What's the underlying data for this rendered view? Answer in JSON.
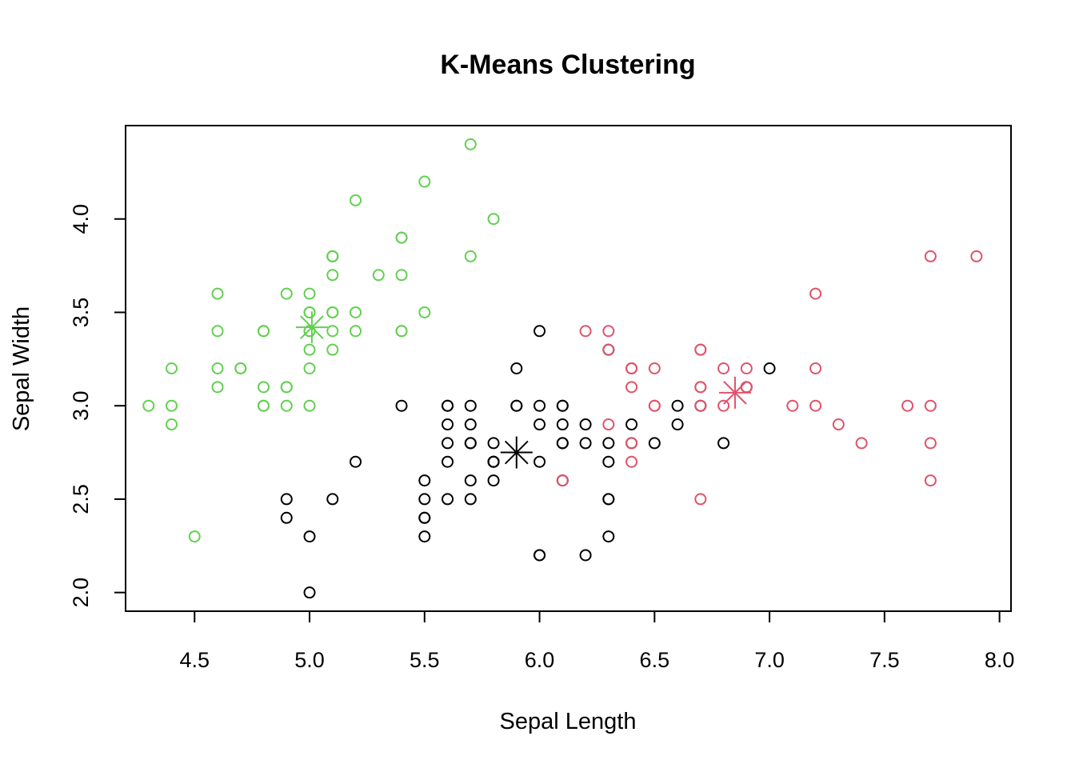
{
  "chart_data": {
    "type": "scatter",
    "title": "K-Means Clustering",
    "xlabel": "Sepal Length",
    "ylabel": "Sepal Width",
    "xlim": [
      4.2,
      8.05
    ],
    "ylim": [
      1.9,
      4.5
    ],
    "x_ticks": [
      "4.5",
      "5.0",
      "5.5",
      "6.0",
      "6.5",
      "7.0",
      "7.5",
      "8.0"
    ],
    "y_ticks": [
      "2.0",
      "2.5",
      "3.0",
      "3.5",
      "4.0"
    ],
    "grid": false,
    "legend": "none",
    "series": [
      {
        "color": "#61D04F",
        "marker": "open-circle",
        "points": [
          [
            5.1,
            3.5
          ],
          [
            4.9,
            3.0
          ],
          [
            4.7,
            3.2
          ],
          [
            4.6,
            3.1
          ],
          [
            5.0,
            3.6
          ],
          [
            5.4,
            3.9
          ],
          [
            4.6,
            3.4
          ],
          [
            5.0,
            3.4
          ],
          [
            4.4,
            2.9
          ],
          [
            4.9,
            3.1
          ],
          [
            5.4,
            3.7
          ],
          [
            4.8,
            3.4
          ],
          [
            4.8,
            3.0
          ],
          [
            4.3,
            3.0
          ],
          [
            5.8,
            4.0
          ],
          [
            5.7,
            4.4
          ],
          [
            5.4,
            3.9
          ],
          [
            5.1,
            3.5
          ],
          [
            5.7,
            3.8
          ],
          [
            5.1,
            3.8
          ],
          [
            5.4,
            3.4
          ],
          [
            5.1,
            3.7
          ],
          [
            4.6,
            3.6
          ],
          [
            5.1,
            3.3
          ],
          [
            4.8,
            3.4
          ],
          [
            5.0,
            3.0
          ],
          [
            5.0,
            3.4
          ],
          [
            5.2,
            3.5
          ],
          [
            5.2,
            3.4
          ],
          [
            4.7,
            3.2
          ],
          [
            4.8,
            3.1
          ],
          [
            5.4,
            3.4
          ],
          [
            5.2,
            4.1
          ],
          [
            5.5,
            4.2
          ],
          [
            4.9,
            3.1
          ],
          [
            5.0,
            3.2
          ],
          [
            5.5,
            3.5
          ],
          [
            4.9,
            3.6
          ],
          [
            4.4,
            3.0
          ],
          [
            5.1,
            3.4
          ],
          [
            5.0,
            3.5
          ],
          [
            4.5,
            2.3
          ],
          [
            4.4,
            3.2
          ],
          [
            5.0,
            3.5
          ],
          [
            5.1,
            3.8
          ],
          [
            4.8,
            3.0
          ],
          [
            5.1,
            3.8
          ],
          [
            4.6,
            3.2
          ],
          [
            5.3,
            3.7
          ],
          [
            5.0,
            3.3
          ]
        ]
      },
      {
        "color": "#000000",
        "marker": "open-circle",
        "points": [
          [
            7.0,
            3.2
          ],
          [
            5.5,
            2.3
          ],
          [
            6.5,
            2.8
          ],
          [
            5.7,
            2.8
          ],
          [
            6.3,
            3.3
          ],
          [
            4.9,
            2.4
          ],
          [
            6.6,
            2.9
          ],
          [
            5.2,
            2.7
          ],
          [
            5.0,
            2.0
          ],
          [
            5.9,
            3.0
          ],
          [
            6.0,
            2.2
          ],
          [
            6.1,
            2.9
          ],
          [
            5.6,
            2.9
          ],
          [
            5.6,
            3.0
          ],
          [
            5.8,
            2.7
          ],
          [
            6.2,
            2.2
          ],
          [
            5.6,
            2.5
          ],
          [
            5.9,
            3.2
          ],
          [
            6.1,
            2.8
          ],
          [
            6.3,
            2.5
          ],
          [
            6.1,
            2.8
          ],
          [
            6.4,
            2.9
          ],
          [
            6.6,
            3.0
          ],
          [
            6.0,
            2.9
          ],
          [
            5.7,
            2.6
          ],
          [
            5.5,
            2.4
          ],
          [
            5.5,
            2.4
          ],
          [
            5.8,
            2.7
          ],
          [
            6.0,
            2.7
          ],
          [
            5.4,
            3.0
          ],
          [
            6.0,
            3.4
          ],
          [
            6.3,
            2.3
          ],
          [
            5.6,
            3.0
          ],
          [
            5.5,
            2.5
          ],
          [
            5.5,
            2.6
          ],
          [
            6.1,
            3.0
          ],
          [
            5.8,
            2.6
          ],
          [
            5.0,
            2.3
          ],
          [
            5.6,
            2.7
          ],
          [
            5.7,
            3.0
          ],
          [
            5.7,
            2.9
          ],
          [
            6.2,
            2.9
          ],
          [
            5.1,
            2.5
          ],
          [
            5.7,
            2.8
          ],
          [
            5.8,
            2.7
          ],
          [
            4.9,
            2.5
          ],
          [
            5.7,
            2.5
          ],
          [
            5.8,
            2.8
          ],
          [
            6.0,
            2.2
          ],
          [
            5.6,
            2.8
          ],
          [
            6.3,
            2.7
          ],
          [
            6.2,
            2.8
          ],
          [
            6.1,
            3.0
          ],
          [
            6.3,
            2.8
          ],
          [
            6.1,
            2.6
          ],
          [
            6.0,
            3.0
          ],
          [
            5.8,
            2.7
          ],
          [
            6.3,
            2.5
          ],
          [
            5.9,
            3.0
          ],
          [
            6.8,
            2.8
          ],
          [
            6.7,
            3.0
          ],
          [
            6.4,
            2.8
          ]
        ]
      },
      {
        "color": "#DF536B",
        "marker": "open-circle",
        "points": [
          [
            6.4,
            3.2
          ],
          [
            6.9,
            3.1
          ],
          [
            6.7,
            3.1
          ],
          [
            6.3,
            3.3
          ],
          [
            7.1,
            3.0
          ],
          [
            6.3,
            2.9
          ],
          [
            6.5,
            3.0
          ],
          [
            7.6,
            3.0
          ],
          [
            7.3,
            2.9
          ],
          [
            6.7,
            2.5
          ],
          [
            7.2,
            3.6
          ],
          [
            6.5,
            3.2
          ],
          [
            6.4,
            2.7
          ],
          [
            6.8,
            3.0
          ],
          [
            6.4,
            3.2
          ],
          [
            7.7,
            3.8
          ],
          [
            7.7,
            2.6
          ],
          [
            6.9,
            3.2
          ],
          [
            7.7,
            2.8
          ],
          [
            6.7,
            3.3
          ],
          [
            7.2,
            3.2
          ],
          [
            6.2,
            3.4
          ],
          [
            7.2,
            3.0
          ],
          [
            7.4,
            2.8
          ],
          [
            7.9,
            3.8
          ],
          [
            6.4,
            2.8
          ],
          [
            6.1,
            2.6
          ],
          [
            7.7,
            3.0
          ],
          [
            6.3,
            3.4
          ],
          [
            6.4,
            3.1
          ],
          [
            6.9,
            3.1
          ],
          [
            6.7,
            3.1
          ],
          [
            6.9,
            3.1
          ],
          [
            6.8,
            3.2
          ],
          [
            6.7,
            3.3
          ],
          [
            6.7,
            3.0
          ],
          [
            6.5,
            3.0
          ],
          [
            6.4,
            3.2
          ]
        ]
      }
    ],
    "centers": [
      {
        "color": "#000000",
        "x": 5.9,
        "y": 2.75
      },
      {
        "color": "#61D04F",
        "x": 5.01,
        "y": 3.42
      },
      {
        "color": "#DF536B",
        "x": 6.85,
        "y": 3.07
      }
    ]
  }
}
